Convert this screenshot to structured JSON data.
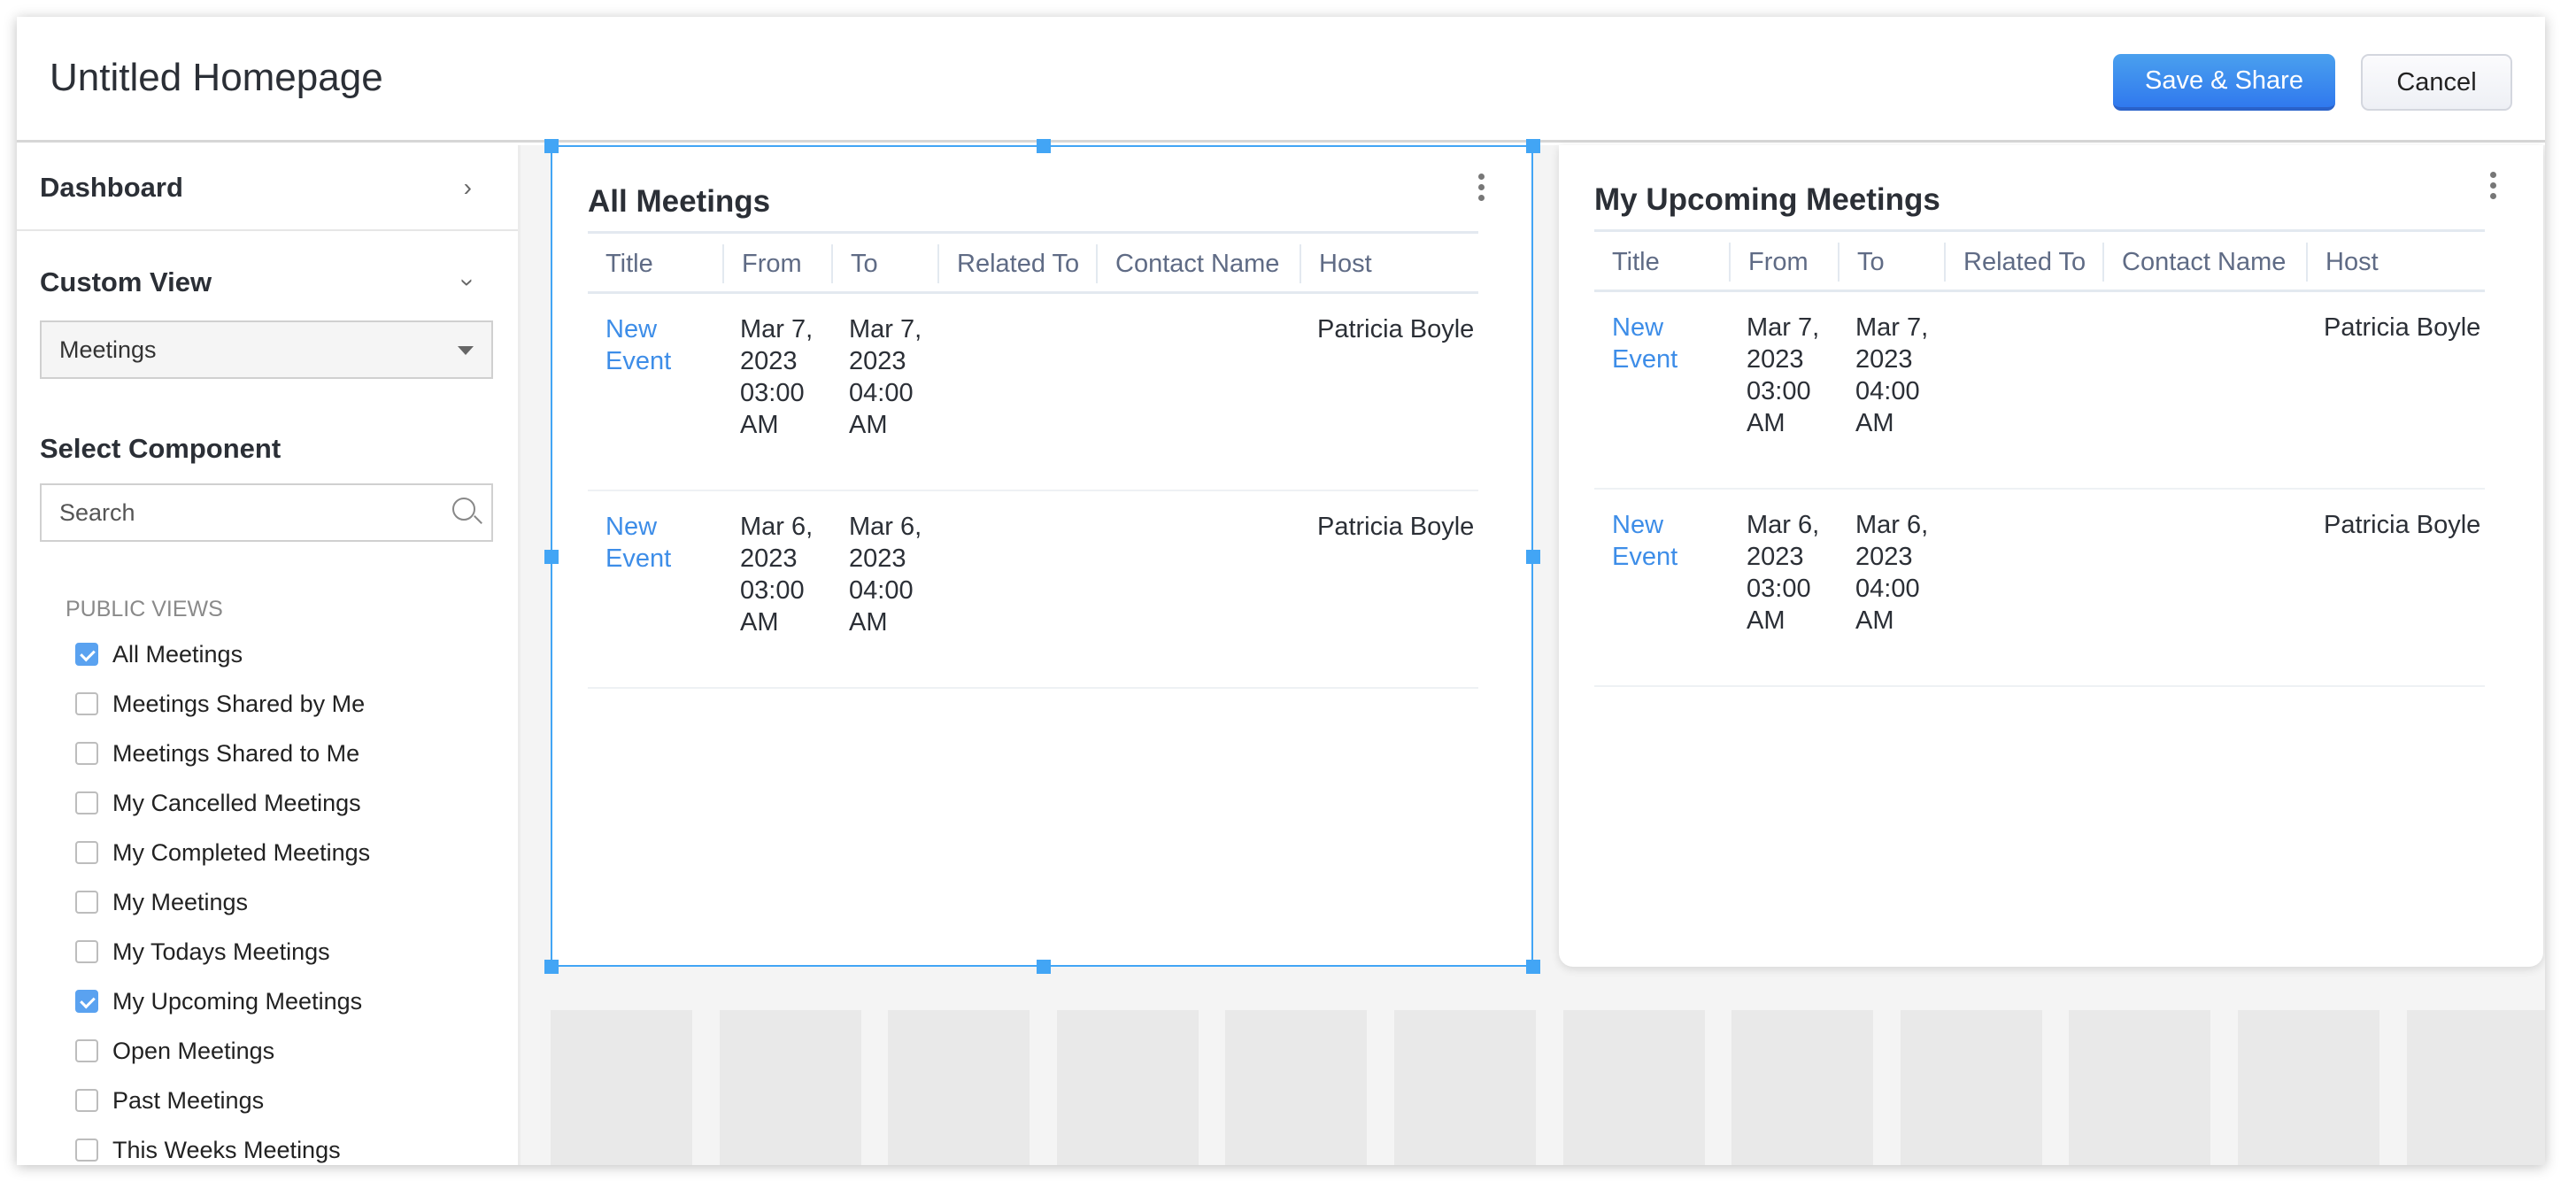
{
  "header": {
    "title": "Untitled Homepage",
    "save_label": "Save & Share",
    "cancel_label": "Cancel"
  },
  "sidebar": {
    "dashboard_label": "Dashboard",
    "custom_view_label": "Custom View",
    "module_select": {
      "value": "Meetings"
    },
    "select_component_label": "Select Component",
    "search": {
      "placeholder": "Search"
    },
    "section_label": "PUBLIC VIEWS",
    "views": [
      {
        "label": "All Meetings",
        "checked": true
      },
      {
        "label": "Meetings Shared by Me",
        "checked": false
      },
      {
        "label": "Meetings Shared to Me",
        "checked": false
      },
      {
        "label": "My Cancelled Meetings",
        "checked": false
      },
      {
        "label": "My Completed Meetings",
        "checked": false
      },
      {
        "label": "My Meetings",
        "checked": false
      },
      {
        "label": "My Todays Meetings",
        "checked": false
      },
      {
        "label": "My Upcoming Meetings",
        "checked": true
      },
      {
        "label": "Open Meetings",
        "checked": false
      },
      {
        "label": "Past Meetings",
        "checked": false
      },
      {
        "label": "This Weeks Meetings",
        "checked": false
      }
    ]
  },
  "cards": [
    {
      "title": "All Meetings",
      "columns": [
        "Title",
        "From",
        "To",
        "Related To",
        "Contact Name",
        "Host"
      ],
      "rows": [
        [
          "New Event",
          "Mar 7, 2023 03:00 AM",
          "Mar 7, 2023 04:00 AM",
          "",
          "",
          "Patricia Boyle"
        ],
        [
          "New Event",
          "Mar 6, 2023 03:00 AM",
          "Mar 6, 2023 04:00 AM",
          "",
          "",
          "Patricia Boyle"
        ]
      ]
    },
    {
      "title": "My Upcoming Meetings",
      "columns": [
        "Title",
        "From",
        "To",
        "Related To",
        "Contact Name",
        "Host"
      ],
      "rows": [
        [
          "New Event",
          "Mar 7, 2023 03:00 AM",
          "Mar 7, 2023 04:00 AM",
          "",
          "",
          "Patricia Boyle"
        ],
        [
          "New Event",
          "Mar 6, 2023 03:00 AM",
          "Mar 6, 2023 04:00 AM",
          "",
          "",
          "Patricia Boyle"
        ]
      ]
    }
  ],
  "colors": {
    "accent": "#3079ee",
    "selection": "#42a5f5",
    "link": "#3d8de8"
  }
}
